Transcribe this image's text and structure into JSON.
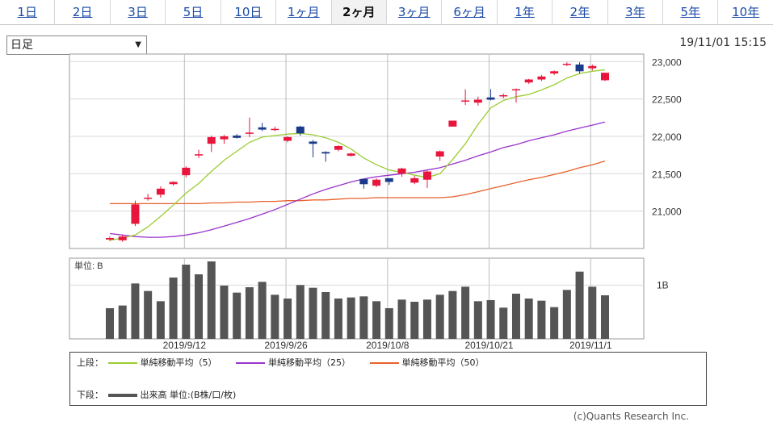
{
  "tabs": [
    {
      "label": "1日",
      "active": false
    },
    {
      "label": "2日",
      "active": false
    },
    {
      "label": "3日",
      "active": false
    },
    {
      "label": "5日",
      "active": false
    },
    {
      "label": "10日",
      "active": false
    },
    {
      "label": "1ヶ月",
      "active": false
    },
    {
      "label": "2ヶ月",
      "active": true
    },
    {
      "label": "3ヶ月",
      "active": false
    },
    {
      "label": "6ヶ月",
      "active": false
    },
    {
      "label": "1年",
      "active": false
    },
    {
      "label": "2年",
      "active": false
    },
    {
      "label": "3年",
      "active": false
    },
    {
      "label": "5年",
      "active": false
    },
    {
      "label": "10年",
      "active": false
    }
  ],
  "period_select": {
    "value": "日足",
    "arrow": "▼"
  },
  "timestamp": "19/11/01 15:15",
  "copyright": "(c)Quants Research Inc.",
  "legend": {
    "upper_label": "上段：",
    "lower_label": "下段：",
    "ma": [
      {
        "label": "単純移動平均（5）",
        "color": "#9acd32"
      },
      {
        "label": "単純移動平均（25）",
        "color": "#9933cc"
      },
      {
        "label": "単純移動平均（50）",
        "color": "#e8602c"
      }
    ],
    "volume": {
      "label": "出来高 単位:(B株/口/枚)",
      "color": "#555555"
    }
  },
  "chart_data": [
    {
      "type": "candlestick",
      "ylim": [
        20500,
        23100
      ],
      "y_ticks": [
        21000,
        21500,
        22000,
        22500,
        23000
      ],
      "y_tick_labels": [
        "21,000",
        "21,500",
        "22,000",
        "22,500",
        "23,000"
      ],
      "x_labels": [
        {
          "label": "2019/9/12",
          "index": 6
        },
        {
          "label": "2019/9/26",
          "index": 14
        },
        {
          "label": "2019/10/8",
          "index": 22
        },
        {
          "label": "2019/10/21",
          "index": 30
        },
        {
          "label": "2019/11/1",
          "index": 38
        }
      ],
      "up_color": "#e8163c",
      "down_color": "#1a3a8a",
      "grid": true,
      "candles": [
        {
          "o": 20620,
          "h": 20660,
          "l": 20600,
          "c": 20640
        },
        {
          "o": 20610,
          "h": 20680,
          "l": 20590,
          "c": 20660
        },
        {
          "o": 20830,
          "h": 21140,
          "l": 20800,
          "c": 21090
        },
        {
          "o": 21180,
          "h": 21230,
          "l": 21140,
          "c": 21180
        },
        {
          "o": 21220,
          "h": 21330,
          "l": 21180,
          "c": 21300
        },
        {
          "o": 21360,
          "h": 21400,
          "l": 21340,
          "c": 21390
        },
        {
          "o": 21480,
          "h": 21600,
          "l": 21450,
          "c": 21580
        },
        {
          "o": 21760,
          "h": 21820,
          "l": 21710,
          "c": 21760
        },
        {
          "o": 21900,
          "h": 22010,
          "l": 21790,
          "c": 21990
        },
        {
          "o": 21960,
          "h": 22020,
          "l": 21900,
          "c": 22000
        },
        {
          "o": 22010,
          "h": 22030,
          "l": 21970,
          "c": 21980
        },
        {
          "o": 22050,
          "h": 22250,
          "l": 21990,
          "c": 22050
        },
        {
          "o": 22120,
          "h": 22180,
          "l": 22070,
          "c": 22090
        },
        {
          "o": 22090,
          "h": 22130,
          "l": 22070,
          "c": 22100
        },
        {
          "o": 21940,
          "h": 22000,
          "l": 21920,
          "c": 21990
        },
        {
          "o": 22130,
          "h": 22140,
          "l": 22010,
          "c": 22040
        },
        {
          "o": 21930,
          "h": 21950,
          "l": 21720,
          "c": 21900
        },
        {
          "o": 21790,
          "h": 21800,
          "l": 21660,
          "c": 21770
        },
        {
          "o": 21820,
          "h": 21880,
          "l": 21800,
          "c": 21870
        },
        {
          "o": 21740,
          "h": 21780,
          "l": 21730,
          "c": 21770
        },
        {
          "o": 21430,
          "h": 21430,
          "l": 21300,
          "c": 21360
        },
        {
          "o": 21340,
          "h": 21440,
          "l": 21320,
          "c": 21420
        },
        {
          "o": 21440,
          "h": 21440,
          "l": 21350,
          "c": 21390
        },
        {
          "o": 21500,
          "h": 21580,
          "l": 21460,
          "c": 21570
        },
        {
          "o": 21380,
          "h": 21470,
          "l": 21360,
          "c": 21440
        },
        {
          "o": 21420,
          "h": 21540,
          "l": 21310,
          "c": 21530
        },
        {
          "o": 21730,
          "h": 21810,
          "l": 21670,
          "c": 21800
        },
        {
          "o": 22130,
          "h": 22200,
          "l": 22130,
          "c": 22210
        },
        {
          "o": 22480,
          "h": 22630,
          "l": 22420,
          "c": 22480
        },
        {
          "o": 22450,
          "h": 22530,
          "l": 22410,
          "c": 22490
        },
        {
          "o": 22520,
          "h": 22630,
          "l": 22480,
          "c": 22490
        },
        {
          "o": 22540,
          "h": 22570,
          "l": 22510,
          "c": 22550
        },
        {
          "o": 22620,
          "h": 22640,
          "l": 22450,
          "c": 22630
        },
        {
          "o": 22720,
          "h": 22770,
          "l": 22700,
          "c": 22760
        },
        {
          "o": 22760,
          "h": 22820,
          "l": 22740,
          "c": 22800
        },
        {
          "o": 22840,
          "h": 22880,
          "l": 22820,
          "c": 22870
        },
        {
          "o": 22960,
          "h": 22990,
          "l": 22940,
          "c": 22970
        },
        {
          "o": 22960,
          "h": 22990,
          "l": 22840,
          "c": 22870
        },
        {
          "o": 22910,
          "h": 22960,
          "l": 22880,
          "c": 22940
        },
        {
          "o": 22750,
          "h": 22850,
          "l": 22740,
          "c": 22850
        }
      ],
      "ma5": [
        20610,
        20640,
        20680,
        20790,
        20930,
        21080,
        21240,
        21370,
        21530,
        21680,
        21800,
        21920,
        21990,
        22010,
        22030,
        22040,
        22020,
        21980,
        21920,
        21830,
        21710,
        21620,
        21550,
        21520,
        21480,
        21450,
        21500,
        21690,
        21900,
        22160,
        22380,
        22480,
        22530,
        22560,
        22620,
        22690,
        22780,
        22840,
        22870,
        22890
      ],
      "ma25": [
        20700,
        20680,
        20660,
        20650,
        20650,
        20660,
        20680,
        20710,
        20750,
        20800,
        20850,
        20900,
        20960,
        21020,
        21090,
        21160,
        21230,
        21290,
        21340,
        21390,
        21430,
        21460,
        21480,
        21500,
        21520,
        21550,
        21580,
        21630,
        21680,
        21740,
        21790,
        21850,
        21890,
        21940,
        21980,
        22020,
        22070,
        22110,
        22150,
        22190
      ],
      "ma50": [
        21100,
        21100,
        21100,
        21100,
        21100,
        21100,
        21100,
        21100,
        21110,
        21110,
        21120,
        21120,
        21130,
        21130,
        21140,
        21140,
        21150,
        21150,
        21160,
        21170,
        21170,
        21180,
        21180,
        21180,
        21180,
        21180,
        21180,
        21190,
        21220,
        21260,
        21300,
        21340,
        21380,
        21420,
        21450,
        21490,
        21530,
        21580,
        21620,
        21670
      ]
    },
    {
      "type": "bar",
      "title": "単位: B",
      "y_tick_labels": [
        "1B"
      ],
      "ylim": [
        0,
        1.5
      ],
      "values": [
        0.57,
        0.62,
        1.03,
        0.89,
        0.7,
        1.14,
        1.38,
        1.2,
        1.44,
        0.99,
        0.86,
        0.96,
        1.06,
        0.82,
        0.75,
        1.0,
        0.95,
        0.87,
        0.75,
        0.77,
        0.79,
        0.7,
        0.57,
        0.73,
        0.69,
        0.73,
        0.82,
        0.89,
        0.97,
        0.7,
        0.72,
        0.58,
        0.84,
        0.75,
        0.71,
        0.59,
        0.91,
        1.25,
        0.97,
        0.81
      ]
    }
  ]
}
